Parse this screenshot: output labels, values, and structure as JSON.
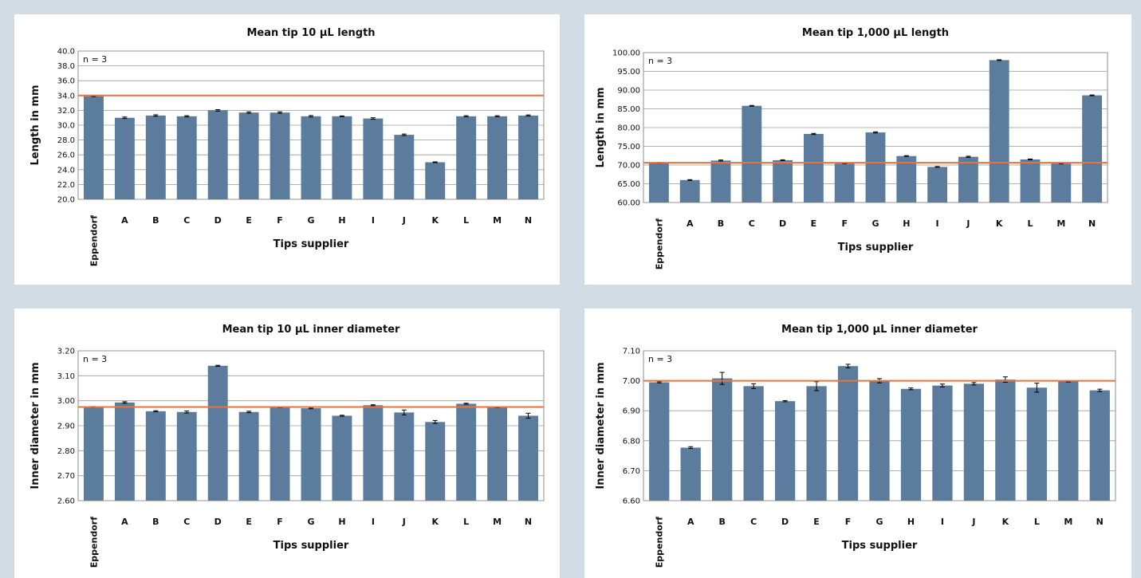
{
  "chart_data": [
    {
      "type": "bar",
      "title": "Mean tip 10 µL length",
      "xlabel": "Tips supplier",
      "ylabel": "Length in mm",
      "annotation": "n = 3",
      "categories": [
        "Eppendorf",
        "A",
        "B",
        "C",
        "D",
        "E",
        "F",
        "G",
        "H",
        "I",
        "J",
        "K",
        "L",
        "M",
        "N"
      ],
      "values": [
        33.9,
        31.0,
        31.3,
        31.2,
        32.0,
        31.7,
        31.7,
        31.2,
        31.2,
        30.9,
        28.7,
        25.0,
        31.2,
        31.2,
        31.3
      ],
      "errors": [
        0.05,
        0.1,
        0.1,
        0.08,
        0.1,
        0.1,
        0.1,
        0.1,
        0.05,
        0.1,
        0.1,
        0.05,
        0.08,
        0.08,
        0.08
      ],
      "reference_line": 34.0,
      "ylim": [
        20.0,
        40.0
      ],
      "yticks": [
        "20.0",
        "22.0",
        "24.0",
        "26.0",
        "28.0",
        "30.0",
        "32.0",
        "34.0",
        "36.0",
        "38.0",
        "40.0"
      ],
      "grid": true,
      "colors": {
        "bar": "#5b7c9c",
        "reference": "#e8743b"
      }
    },
    {
      "type": "bar",
      "title": "Mean tip 1,000 µL length",
      "xlabel": "Tips supplier",
      "ylabel": "Length in mm",
      "annotation": "n = 3",
      "categories": [
        "Eppendorf",
        "A",
        "B",
        "C",
        "D",
        "E",
        "F",
        "G",
        "H",
        "I",
        "J",
        "K",
        "L",
        "M",
        "N"
      ],
      "values": [
        70.6,
        66.0,
        71.2,
        85.8,
        71.3,
        78.3,
        70.4,
        78.7,
        72.4,
        69.5,
        72.2,
        98.0,
        71.5,
        70.4,
        88.6
      ],
      "errors": [
        0.1,
        0.1,
        0.15,
        0.1,
        0.1,
        0.15,
        0.05,
        0.15,
        0.1,
        0.1,
        0.15,
        0.1,
        0.1,
        0.1,
        0.1
      ],
      "reference_line": 70.6,
      "ylim": [
        60.0,
        100.0
      ],
      "yticks": [
        "60.00",
        "65.00",
        "70.00",
        "75.00",
        "80.00",
        "85.00",
        "90.00",
        "95.00",
        "100.00"
      ],
      "grid": true,
      "colors": {
        "bar": "#5b7c9c",
        "reference": "#e8743b"
      }
    },
    {
      "type": "bar",
      "title": "Mean tip 10 µL inner diameter",
      "xlabel": "Tips supplier",
      "ylabel": "Inner diameter in mm",
      "annotation": "n = 3",
      "categories": [
        "Eppendorf",
        "A",
        "B",
        "C",
        "D",
        "E",
        "F",
        "G",
        "H",
        "I",
        "J",
        "K",
        "L",
        "M",
        "N"
      ],
      "values": [
        2.975,
        2.993,
        2.958,
        2.955,
        3.14,
        2.955,
        2.973,
        2.97,
        2.94,
        2.982,
        2.953,
        2.915,
        2.988,
        2.973,
        2.94
      ],
      "errors": [
        0.002,
        0.003,
        0.002,
        0.004,
        0.002,
        0.003,
        0.001,
        0.002,
        0.002,
        0.002,
        0.01,
        0.006,
        0.002,
        0.001,
        0.01
      ],
      "reference_line": 2.975,
      "ylim": [
        2.6,
        3.2
      ],
      "yticks": [
        "2.60",
        "2.70",
        "2.80",
        "2.90",
        "3.00",
        "3.10",
        "3.20"
      ],
      "grid": true,
      "colors": {
        "bar": "#5b7c9c",
        "reference": "#e8743b"
      }
    },
    {
      "type": "bar",
      "title": "Mean tip 1,000 µL inner diameter",
      "xlabel": "Tips supplier",
      "ylabel": "Inner diameter in mm",
      "annotation": "n = 3",
      "categories": [
        "Eppendorf",
        "A",
        "B",
        "C",
        "D",
        "E",
        "F",
        "G",
        "H",
        "I",
        "J",
        "K",
        "L",
        "M",
        "N"
      ],
      "values": [
        6.995,
        6.777,
        7.008,
        6.982,
        6.932,
        6.982,
        7.049,
        7.0,
        6.973,
        6.984,
        6.99,
        7.004,
        6.977,
        6.998,
        6.968
      ],
      "errors": [
        0.002,
        0.003,
        0.02,
        0.008,
        0.002,
        0.015,
        0.006,
        0.007,
        0.003,
        0.005,
        0.004,
        0.009,
        0.015,
        0.002,
        0.004
      ],
      "reference_line": 7.0,
      "ylim": [
        6.6,
        7.1
      ],
      "yticks": [
        "6.60",
        "6.70",
        "6.80",
        "6.90",
        "7.00",
        "7.10"
      ],
      "grid": true,
      "colors": {
        "bar": "#5b7c9c",
        "reference": "#e8743b"
      }
    }
  ]
}
